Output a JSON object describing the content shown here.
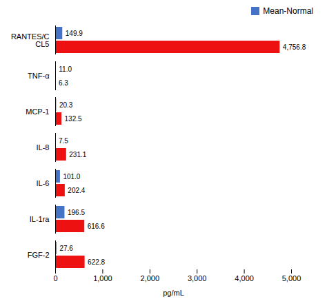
{
  "chart_data": {
    "type": "bar",
    "orientation": "horizontal",
    "categories": [
      "RANTES/C\nCL5",
      "TNF-α",
      "MCP-1",
      "IL-8",
      "IL-6",
      "IL-1ra",
      "FGF-2"
    ],
    "series": [
      {
        "name": "Mean-Normal",
        "color": "#4472C4",
        "values": [
          149.9,
          11.0,
          20.3,
          7.5,
          101.0,
          196.5,
          27.6
        ],
        "value_labels": [
          "149.9",
          "11.0",
          "20.3",
          "7.5",
          "101.0",
          "196.5",
          "27.6"
        ]
      },
      {
        "color": "#EE1111",
        "values": [
          4756.8,
          6.3,
          132.5,
          231.1,
          202.4,
          616.6,
          622.8
        ],
        "value_labels": [
          "4,756.8",
          "6.3",
          "132.5",
          "231.1",
          "202.4",
          "616.6",
          "622.8"
        ]
      }
    ],
    "xlabel": "pg/mL",
    "xlim": [
      0,
      5000
    ],
    "xticks": [
      0,
      {
        "value": 1000,
        "label": "1,000"
      },
      {
        "value": 2000,
        "label": "2,000"
      },
      {
        "value": 3000,
        "label": "3,000"
      },
      {
        "value": 4000,
        "label": "4,000"
      },
      {
        "value": 5000,
        "label": "5,000"
      }
    ],
    "data_labels": true,
    "grid": false,
    "legend": "right"
  }
}
